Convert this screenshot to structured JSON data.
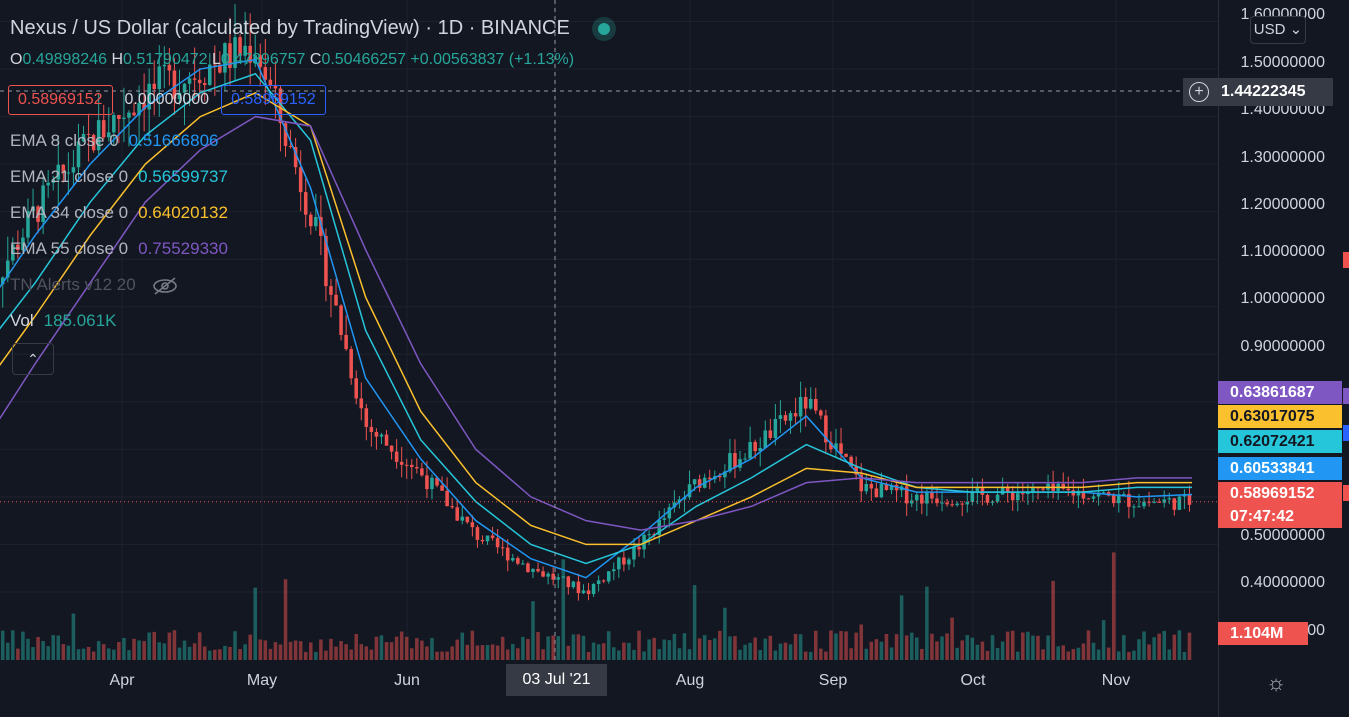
{
  "header": {
    "title": "Nexus / US Dollar (calculated by TradingView) · 1D · BINANCE",
    "ohlc": {
      "o_label": "O",
      "o": "0.49898246",
      "h_label": "H",
      "h": "0.51790472",
      "l_label": "L",
      "l": "0.47396757",
      "c_label": "C",
      "c": "0.50466257",
      "change": "+0.00563837 (+1.13%)"
    },
    "boxes": {
      "sell": "0.58969152",
      "spread": "0.00000000",
      "buy": "0.58969152"
    },
    "indicators": [
      {
        "label": "EMA 8 close 0",
        "value": "0.51666806",
        "color": "#2196f3"
      },
      {
        "label": "EMA 21 close 0",
        "value": "0.56599737",
        "color": "#26c6da"
      },
      {
        "label": "EMA 34 close 0",
        "value": "0.64020132",
        "color": "#fbc02d"
      },
      {
        "label": "EMA 55 close 0",
        "value": "0.75529330",
        "color": "#7e57c2"
      }
    ],
    "alerts_label": "TN Alerts v12 20",
    "vol_label": "Vol",
    "vol_value": "185.061K",
    "collapse_icon": "chevron-up-icon",
    "hidden_icon": "eye-off-icon"
  },
  "price_axis": {
    "currency": "USD",
    "labels": [
      "1.60000000",
      "1.50000000",
      "1.40000000",
      "1.30000000",
      "1.20000000",
      "1.10000000",
      "1.00000000",
      "0.90000000",
      "0.50000000",
      "0.40000000",
      ".0000000"
    ],
    "crosshair_value": "1.44222345",
    "badges": [
      {
        "name": "ema55-badge",
        "value": "0.63861687",
        "color": "#7e57c2"
      },
      {
        "name": "ema34-badge",
        "value": "0.63017075",
        "color": "#fbc02d"
      },
      {
        "name": "ema21-badge",
        "value": "0.62072421",
        "color": "#26c6da"
      },
      {
        "name": "ema8-badge",
        "value": "0.60533841",
        "color": "#2196f3"
      },
      {
        "name": "last-price-badge",
        "value": "0.58969152",
        "color": "#ef5350"
      },
      {
        "name": "countdown-badge",
        "value": "07:47:42",
        "color": "#ef5350"
      },
      {
        "name": "volume-badge",
        "value": "1.104M",
        "color": "#ef5350"
      }
    ]
  },
  "time_axis": {
    "labels": [
      "Apr",
      "May",
      "Jun",
      "Aug",
      "Sep",
      "Oct",
      "Nov"
    ],
    "crosshair_date": "03 Jul '21"
  },
  "chart_data": {
    "type": "candlestick",
    "symbol": "Nexus / US Dollar",
    "interval": "1D",
    "exchange": "BINANCE",
    "ylim": [
      0.32,
      1.62
    ],
    "x": [
      "Mar-20",
      "Apr-01",
      "Apr-15",
      "May-01",
      "May-10",
      "May-15",
      "May-20",
      "Jun-01",
      "Jun-15",
      "Jul-01",
      "Jul-15",
      "Jul-22",
      "Aug-01",
      "Aug-15",
      "Sep-01",
      "Sep-06",
      "Sep-15",
      "Sep-25",
      "Oct-01",
      "Oct-15",
      "Nov-01",
      "Nov-15",
      "Nov-19"
    ],
    "close": [
      1.0,
      1.2,
      1.35,
      1.45,
      1.5,
      1.55,
      1.2,
      0.75,
      0.65,
      0.52,
      0.45,
      0.4,
      0.5,
      0.63,
      0.7,
      0.8,
      0.62,
      0.6,
      0.6,
      0.61,
      0.61,
      0.59,
      0.59
    ],
    "series": [
      {
        "name": "EMA 8",
        "values": [
          0.98,
          1.15,
          1.3,
          1.42,
          1.5,
          1.52,
          1.25,
          0.85,
          0.68,
          0.55,
          0.47,
          0.43,
          0.52,
          0.62,
          0.68,
          0.77,
          0.64,
          0.61,
          0.61,
          0.61,
          0.61,
          0.6,
          0.605
        ]
      },
      {
        "name": "EMA 21",
        "values": [
          0.9,
          1.05,
          1.22,
          1.36,
          1.45,
          1.49,
          1.35,
          0.95,
          0.72,
          0.59,
          0.5,
          0.46,
          0.5,
          0.58,
          0.64,
          0.71,
          0.66,
          0.62,
          0.61,
          0.61,
          0.61,
          0.62,
          0.62
        ]
      },
      {
        "name": "EMA 34",
        "values": [
          0.82,
          0.98,
          1.15,
          1.3,
          1.4,
          1.45,
          1.38,
          1.02,
          0.78,
          0.63,
          0.54,
          0.5,
          0.5,
          0.55,
          0.6,
          0.66,
          0.65,
          0.62,
          0.62,
          0.62,
          0.62,
          0.63,
          0.63
        ]
      },
      {
        "name": "EMA 55",
        "values": [
          0.7,
          0.88,
          1.05,
          1.22,
          1.33,
          1.4,
          1.38,
          1.12,
          0.88,
          0.7,
          0.6,
          0.55,
          0.53,
          0.55,
          0.58,
          0.63,
          0.64,
          0.63,
          0.63,
          0.63,
          0.63,
          0.64,
          0.64
        ]
      }
    ]
  }
}
